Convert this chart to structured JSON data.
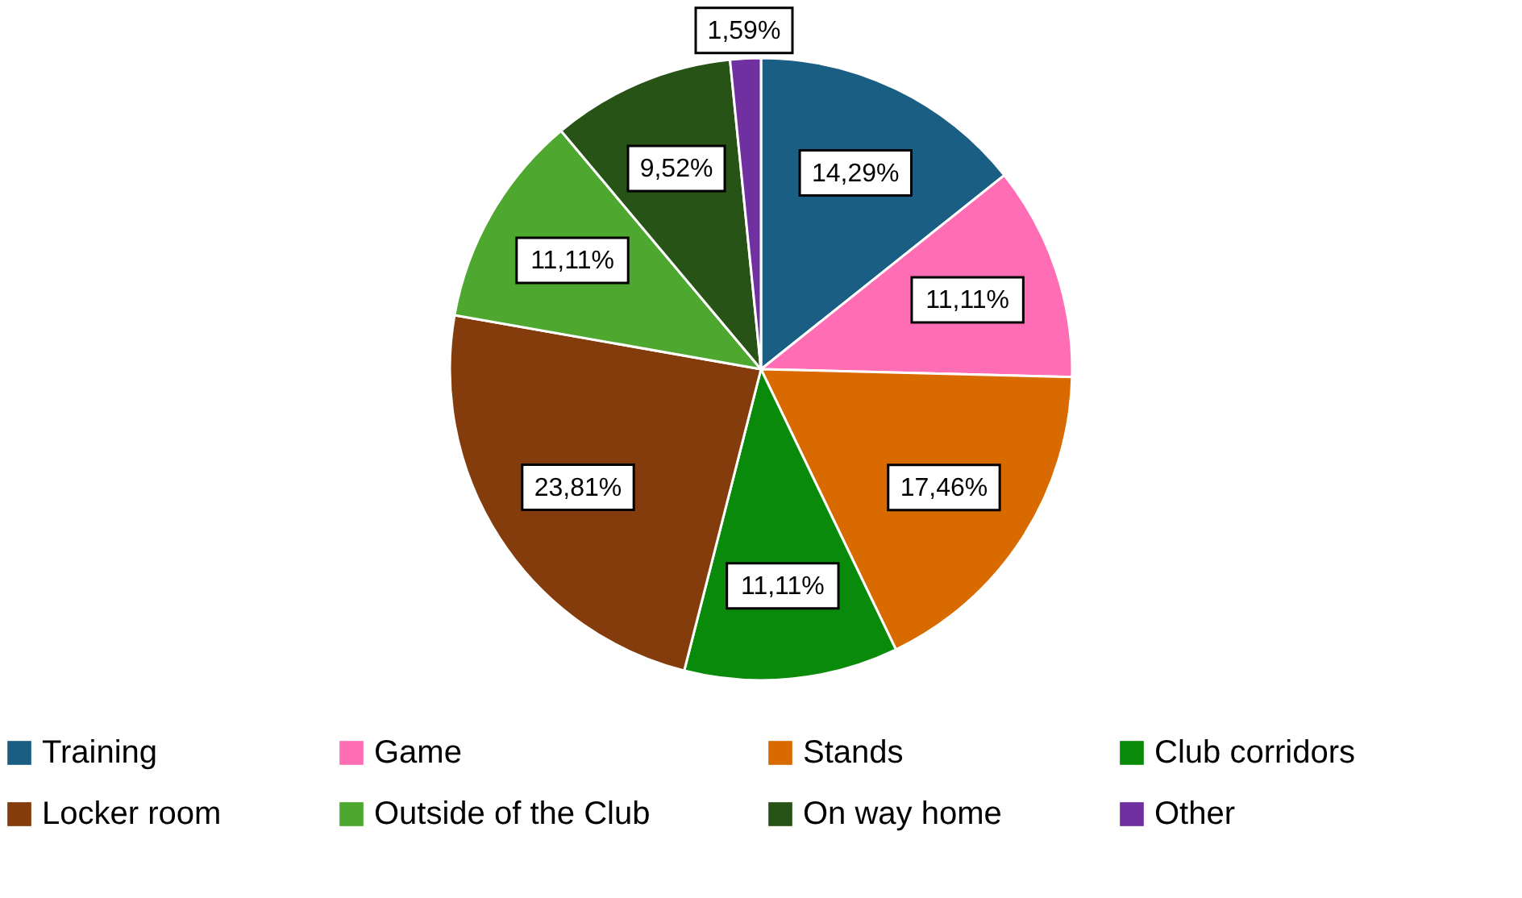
{
  "chart_data": {
    "type": "pie",
    "categories": [
      "Training",
      "Game",
      "Stands",
      "Club corridors",
      "Locker room",
      "Outside of the Club",
      "On way home",
      "Other"
    ],
    "values": [
      14.29,
      11.11,
      17.46,
      11.11,
      23.81,
      11.11,
      9.52,
      1.59
    ],
    "value_labels": [
      "14,29%",
      "11,11%",
      "17,46%",
      "11,11%",
      "23,81%",
      "11,11%",
      "9,52%",
      "1,59%"
    ],
    "colors": [
      "#1b5e84",
      "#ff6eb4",
      "#d86a00",
      "#0a8a0a",
      "#843c0c",
      "#4ea72e",
      "#275317",
      "#7030a0"
    ],
    "legend": "bottom"
  }
}
